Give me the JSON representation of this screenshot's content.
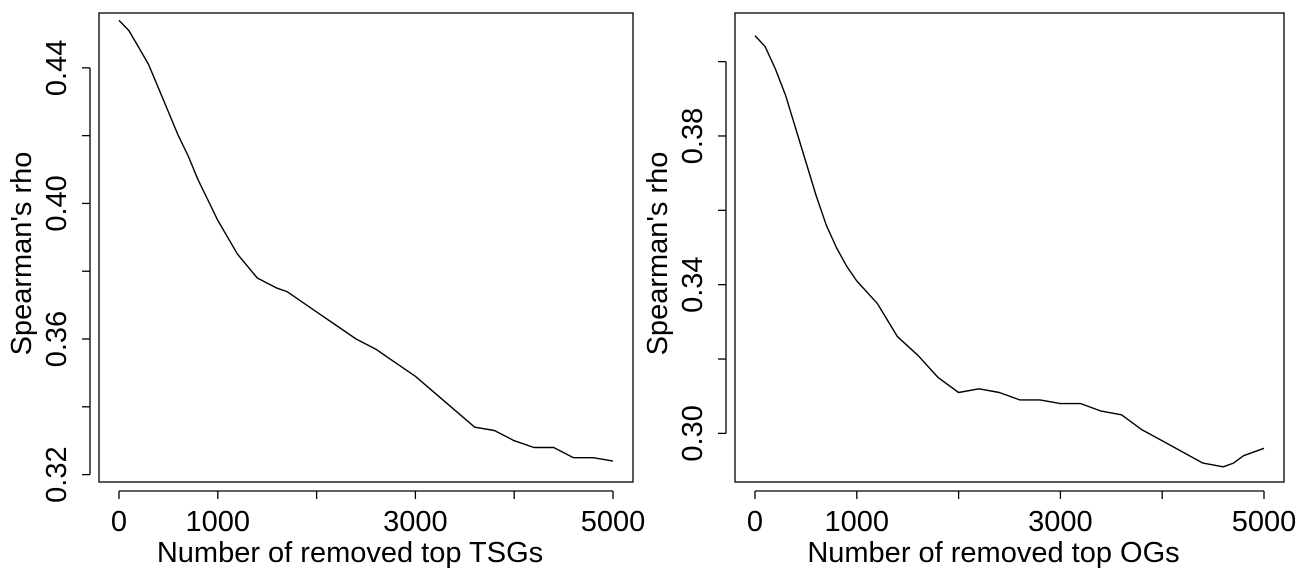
{
  "chart_data": [
    {
      "type": "line",
      "xlabel": "Number of removed top TSGs",
      "ylabel": "Spearman's rho",
      "xlim": [
        0,
        5000
      ],
      "ylim": [
        0.319,
        0.455
      ],
      "x_ticks": [
        0,
        1000,
        2000,
        3000,
        4000,
        5000
      ],
      "x_tick_labels": [
        "0",
        "1000",
        "",
        "3000",
        "",
        "5000"
      ],
      "y_ticks": [
        0.32,
        0.34,
        0.36,
        0.38,
        0.4,
        0.42,
        0.44
      ],
      "y_tick_labels": [
        "0.32",
        "",
        "0.36",
        "",
        "0.40",
        "",
        "0.44"
      ],
      "series": [
        {
          "color": "#000000",
          "x": [
            0,
            100,
            200,
            300,
            400,
            500,
            600,
            700,
            800,
            900,
            1000,
            1200,
            1400,
            1600,
            1700,
            1800,
            2000,
            2200,
            2400,
            2600,
            2800,
            3000,
            3200,
            3400,
            3600,
            3800,
            4000,
            4200,
            4400,
            4600,
            4800,
            5000
          ],
          "y": [
            0.454,
            0.451,
            0.446,
            0.441,
            0.434,
            0.427,
            0.42,
            0.414,
            0.407,
            0.401,
            0.395,
            0.385,
            0.378,
            0.375,
            0.374,
            0.372,
            0.368,
            0.364,
            0.36,
            0.357,
            0.353,
            0.349,
            0.344,
            0.339,
            0.334,
            0.333,
            0.33,
            0.328,
            0.328,
            0.325,
            0.325,
            0.324
          ]
        }
      ]
    },
    {
      "type": "line",
      "xlabel": "Number of removed top OGs",
      "ylabel": "Spearman's rho",
      "xlim": [
        0,
        5000
      ],
      "ylim": [
        0.288,
        0.412
      ],
      "x_ticks": [
        0,
        1000,
        2000,
        3000,
        4000,
        5000
      ],
      "x_tick_labels": [
        "0",
        "1000",
        "",
        "3000",
        "",
        "5000"
      ],
      "y_ticks": [
        0.3,
        0.32,
        0.34,
        0.36,
        0.38,
        0.4
      ],
      "y_tick_labels": [
        "0.30",
        "",
        "0.34",
        "",
        "0.38",
        ""
      ],
      "series": [
        {
          "color": "#000000",
          "x": [
            0,
            100,
            200,
            300,
            400,
            500,
            600,
            700,
            800,
            900,
            1000,
            1200,
            1400,
            1600,
            1800,
            2000,
            2200,
            2400,
            2600,
            2800,
            3000,
            3200,
            3400,
            3600,
            3800,
            4000,
            4200,
            4400,
            4600,
            4700,
            4800,
            5000
          ],
          "y": [
            0.407,
            0.404,
            0.398,
            0.391,
            0.382,
            0.373,
            0.364,
            0.356,
            0.35,
            0.345,
            0.341,
            0.335,
            0.326,
            0.321,
            0.315,
            0.311,
            0.312,
            0.311,
            0.309,
            0.309,
            0.308,
            0.308,
            0.306,
            0.305,
            0.301,
            0.298,
            0.295,
            0.292,
            0.291,
            0.292,
            0.294,
            0.296
          ]
        }
      ]
    }
  ]
}
